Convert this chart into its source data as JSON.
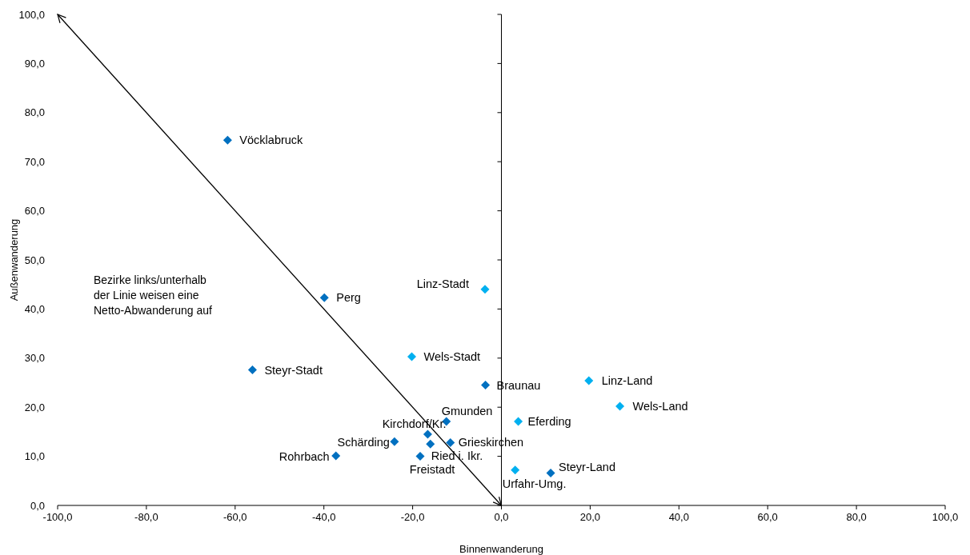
{
  "chart_data": {
    "type": "scatter",
    "xlabel": "Binnenwanderung",
    "ylabel": "Außenwanderung",
    "marker": "diamond",
    "xlim": [
      -100,
      100
    ],
    "ylim": [
      0,
      100
    ],
    "xticks": [
      {
        "value": -100,
        "label": "-100,0"
      },
      {
        "value": -80,
        "label": "-80,0"
      },
      {
        "value": -60,
        "label": "-60,0"
      },
      {
        "value": -40,
        "label": "-40,0"
      },
      {
        "value": -20,
        "label": "-20,0"
      },
      {
        "value": 0,
        "label": "0,0"
      },
      {
        "value": 20,
        "label": "20,0"
      },
      {
        "value": 40,
        "label": "40,0"
      },
      {
        "value": 60,
        "label": "60,0"
      },
      {
        "value": 80,
        "label": "80,0"
      },
      {
        "value": 100,
        "label": "100,0"
      }
    ],
    "yticks": [
      {
        "value": 0,
        "label": "0,0"
      },
      {
        "value": 10,
        "label": "10,0"
      },
      {
        "value": 20,
        "label": "20,0"
      },
      {
        "value": 30,
        "label": "30,0"
      },
      {
        "value": 40,
        "label": "40,0"
      },
      {
        "value": 50,
        "label": "50,0"
      },
      {
        "value": 60,
        "label": "60,0"
      },
      {
        "value": 70,
        "label": "70,0"
      },
      {
        "value": 80,
        "label": "80,0"
      },
      {
        "value": 90,
        "label": "90,0"
      },
      {
        "value": 100,
        "label": "100,0"
      }
    ],
    "series": [
      {
        "color": "#0070c0",
        "x": [
          -61.7,
          -39.9,
          -56.1,
          -3.6,
          -12.4,
          -16.6,
          -11.5,
          -24.1,
          -16.0,
          -18.3,
          -37.3,
          11.1
        ],
        "values": [
          74.4,
          42.3,
          27.6,
          24.5,
          17.1,
          14.5,
          12.8,
          13.0,
          12.5,
          10.0,
          10.1,
          6.6
        ]
      },
      {
        "color": "#00b0f0",
        "x": [
          -3.7,
          -20.2,
          19.7,
          26.7,
          3.8,
          3.1
        ],
        "values": [
          44.0,
          30.3,
          25.4,
          20.2,
          17.1,
          7.2
        ]
      },
      {
        "type": "line",
        "color": "#000000",
        "marker": "none",
        "x": [
          -100,
          0
        ],
        "values": [
          100,
          0
        ]
      }
    ],
    "annotations": [
      {
        "text": "Vöcklabruck",
        "x": -61.7,
        "y": 74.4
      },
      {
        "text": "Perg",
        "x": -39.9,
        "y": 42.3
      },
      {
        "text": "Steyr-Stadt",
        "x": -56.1,
        "y": 27.6
      },
      {
        "text": "Linz-Stadt",
        "x": -3.7,
        "y": 44.0
      },
      {
        "text": "Wels-Stadt",
        "x": -20.2,
        "y": 30.3
      },
      {
        "text": "Braunau",
        "x": -3.6,
        "y": 24.5
      },
      {
        "text": "Linz-Land",
        "x": 19.7,
        "y": 25.4
      },
      {
        "text": "Wels-Land",
        "x": 26.7,
        "y": 20.2
      },
      {
        "text": "Gmunden",
        "x": -12.4,
        "y": 17.1
      },
      {
        "text": "Eferding",
        "x": 3.8,
        "y": 17.1
      },
      {
        "text": "Kirchdorf/Kr.",
        "x": -16.6,
        "y": 14.5
      },
      {
        "text": "Grieskirchen",
        "x": -11.5,
        "y": 12.8
      },
      {
        "text": "Schärding",
        "x": -24.1,
        "y": 13.0
      },
      {
        "text": "Ried i. Ikr.",
        "x": -16.0,
        "y": 12.5
      },
      {
        "text": "Freistadt",
        "x": -18.3,
        "y": 10.0
      },
      {
        "text": "Rohrbach",
        "x": -37.3,
        "y": 10.1
      },
      {
        "text": "Urfahr-Umg.",
        "x": 3.1,
        "y": 7.2
      },
      {
        "text": "Steyr-Land",
        "x": 11.1,
        "y": 6.6
      },
      "Bezirke links/unterhalb der Linie weisen eine Netto-Abwanderung auf"
    ]
  }
}
